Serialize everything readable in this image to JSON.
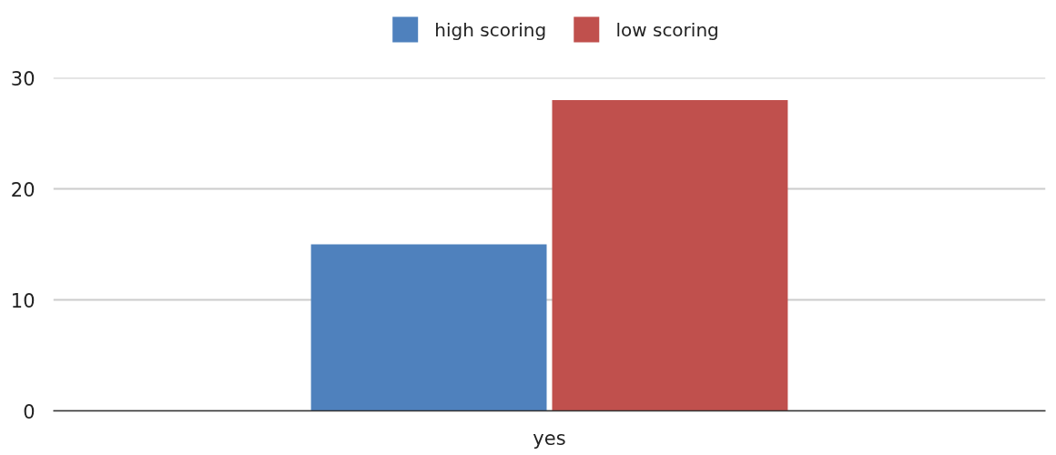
{
  "chart_data": {
    "type": "bar",
    "categories": [
      "yes"
    ],
    "series": [
      {
        "name": "high scoring",
        "color": "#4f81bd",
        "values": [
          15
        ]
      },
      {
        "name": "low scoring",
        "color": "#c0504d",
        "values": [
          28
        ]
      }
    ],
    "ylim": [
      0,
      30
    ],
    "yticks": [
      0,
      10,
      20,
      30
    ],
    "grid": "y",
    "legend": "top"
  }
}
